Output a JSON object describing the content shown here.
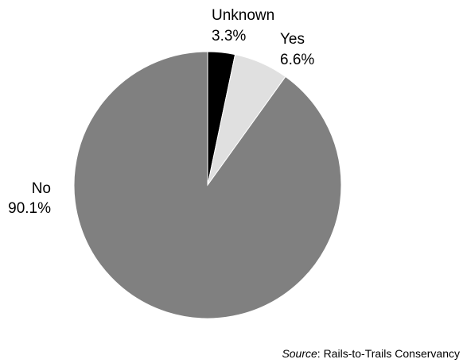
{
  "chart_data": {
    "type": "pie",
    "slices": [
      {
        "label": "Unknown",
        "value": 3.3,
        "value_label": "3.3%",
        "color": "#000000"
      },
      {
        "label": "Yes",
        "value": 6.6,
        "value_label": "6.6%",
        "color": "#e0e0e0"
      },
      {
        "label": "No",
        "value": 90.1,
        "value_label": "90.1%",
        "color": "#808080"
      }
    ],
    "start": "12 o'clock, clockwise"
  },
  "source": {
    "prefix": "Source",
    "text": ": Rails-to-Trails Conservancy"
  }
}
